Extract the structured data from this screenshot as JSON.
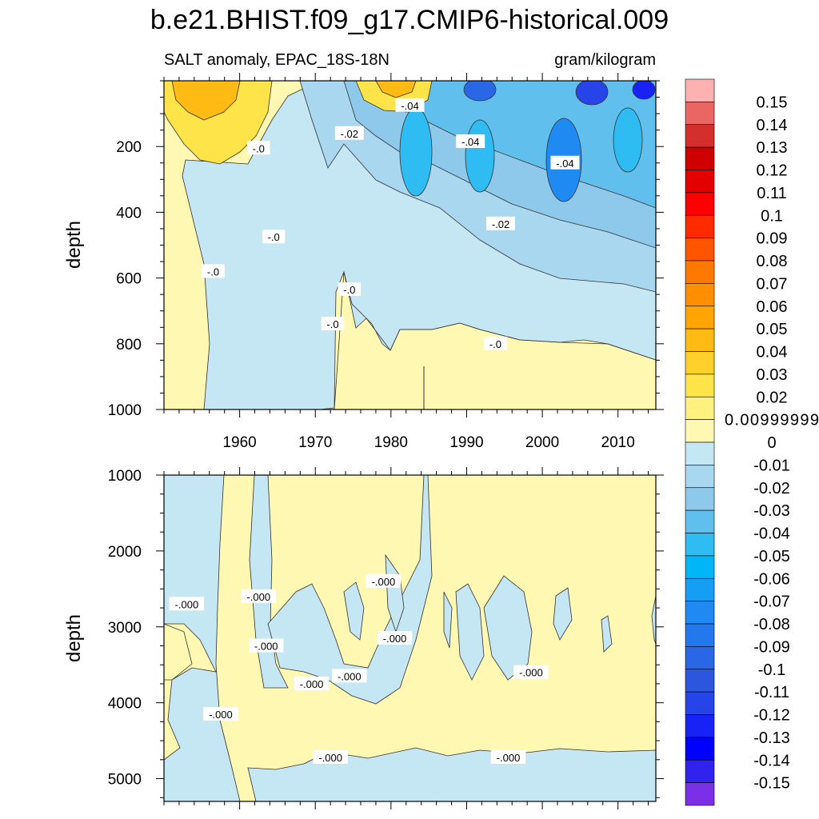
{
  "title": "b.e21.BHIST.f09_g17.CMIP6-historical.009",
  "chart_data": [
    {
      "type": "contour",
      "panel": "upper",
      "variable_label": "SALT anomaly, EPAC_18S-18N",
      "units_label": "gram/kilogram",
      "ylabel": "depth",
      "xlim": [
        1950,
        2015
      ],
      "ylim": [
        1000,
        0
      ],
      "x_ticks": [
        "1960",
        "1970",
        "1980",
        "1990",
        "2000",
        "2010"
      ],
      "x_tick_values": [
        1960,
        1970,
        1980,
        1990,
        2000,
        2010
      ],
      "y_ticks": [
        "200",
        "400",
        "600",
        "800",
        "1000"
      ],
      "y_tick_values": [
        200,
        400,
        600,
        800,
        1000
      ],
      "contour_labels": [
        {
          "text": "-.04",
          "x": 1982.5,
          "y": 75
        },
        {
          "text": "-.02",
          "x": 1974.5,
          "y": 160
        },
        {
          "text": "-.0",
          "x": 1962.5,
          "y": 205
        },
        {
          "text": "-.04",
          "x": 1990.5,
          "y": 185
        },
        {
          "text": "-.04",
          "x": 2003,
          "y": 250
        },
        {
          "text": "-.02",
          "x": 1994.5,
          "y": 435
        },
        {
          "text": "-.0",
          "x": 1964.5,
          "y": 475
        },
        {
          "text": "-.0",
          "x": 1956.5,
          "y": 580
        },
        {
          "text": "-.0",
          "x": 1974.5,
          "y": 635
        },
        {
          "text": "-.0",
          "x": 1972.3,
          "y": 740
        },
        {
          "text": "-.0",
          "x": 1993.8,
          "y": 800
        }
      ],
      "zero_contour_depth": {
        "years": [
          1973,
          1976,
          1980,
          1985,
          1990,
          1995,
          2000,
          2005,
          2010,
          2015
        ],
        "depth": [
          780,
          760,
          820,
          805,
          780,
          800,
          790,
          805,
          820,
          860
        ]
      }
    },
    {
      "type": "contour",
      "panel": "lower",
      "ylabel": "depth",
      "xlim": [
        1950,
        2015
      ],
      "ylim": [
        1000,
        5300
      ],
      "y_ticks": [
        "1000",
        "2000",
        "3000",
        "4000",
        "5000"
      ],
      "y_tick_values": [
        1000,
        2000,
        3000,
        4000,
        5000
      ],
      "contour_labels": [
        {
          "text": "-.000",
          "x": 1953,
          "y": 2700
        },
        {
          "text": "-.000",
          "x": 1962.5,
          "y": 2600
        },
        {
          "text": "-.000",
          "x": 1979,
          "y": 2400
        },
        {
          "text": "-.000",
          "x": 1980.5,
          "y": 3150
        },
        {
          "text": "-.000",
          "x": 1963.5,
          "y": 3250
        },
        {
          "text": "-.000",
          "x": 1969.5,
          "y": 3750
        },
        {
          "text": "-.000",
          "x": 1974.5,
          "y": 3650
        },
        {
          "text": "-.000",
          "x": 1998.5,
          "y": 3600
        },
        {
          "text": "-.000",
          "x": 1957.5,
          "y": 4150
        },
        {
          "text": "-.000",
          "x": 1972,
          "y": 4720
        },
        {
          "text": "-.000",
          "x": 1995.5,
          "y": 4720
        }
      ],
      "bottom_boundary_depth": 4700
    }
  ],
  "colorbar": {
    "labels": [
      "0.15",
      "0.14",
      "0.13",
      "0.12",
      "0.11",
      "0.1",
      "0.09",
      "0.08",
      "0.07",
      "0.06",
      "0.05",
      "0.04",
      "0.03",
      "0.02",
      "0.00999999",
      "0",
      "-0.01",
      "-0.02",
      "-0.03",
      "-0.04",
      "-0.05",
      "-0.06",
      "-0.07",
      "-0.08",
      "-0.09",
      "-0.1",
      "-0.11",
      "-0.12",
      "-0.13",
      "-0.14",
      "-0.15"
    ],
    "colors": [
      "#fdb1b1",
      "#ea6664",
      "#d42e2d",
      "#d00000",
      "#e40000",
      "#ff0000",
      "#ff2a00",
      "#ff5500",
      "#ff7800",
      "#ff8f00",
      "#ffa400",
      "#ffba13",
      "#ffd02c",
      "#ffe449",
      "#fff180",
      "#fff8b3",
      "#c5e6f3",
      "#a8d7ef",
      "#8ec9ec",
      "#61bfee",
      "#2fbcf3",
      "#00b6f6",
      "#169ef5",
      "#1e8af2",
      "#2378ed",
      "#2a67e6",
      "#2c56de",
      "#2744e8",
      "#1922f5",
      "#0000ff",
      "#2f23ed",
      "#7b2fe6"
    ]
  }
}
